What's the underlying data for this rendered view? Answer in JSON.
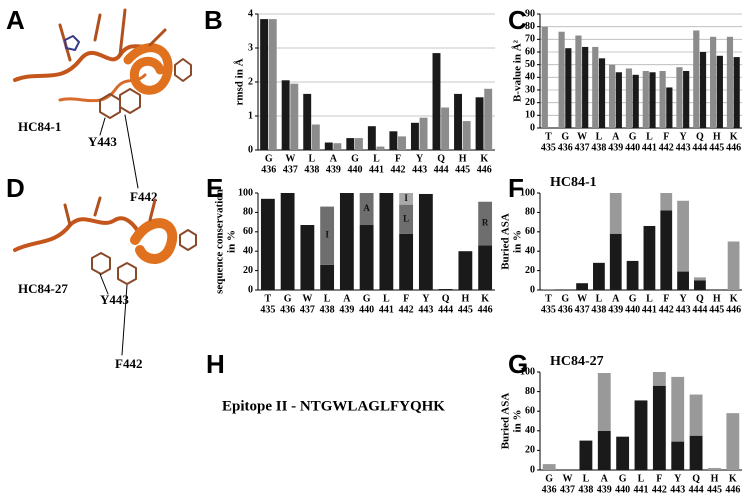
{
  "panel_labels": {
    "a": "A",
    "b": "B",
    "c": "C",
    "d": "D",
    "e": "E",
    "f": "F",
    "g": "G",
    "h": "H"
  },
  "structures": [
    {
      "name": "HC84-1",
      "residue_1": "Y443",
      "residue_2": "F442"
    },
    {
      "name": "HC84-27",
      "residue_1": "Y443",
      "residue_2": "F442"
    }
  ],
  "epitope": "Epitope II - NTGWLAGLFYQHK",
  "chart_data": [
    {
      "type": "bar",
      "y_label": [
        "rmsd in Å"
      ],
      "categories": [
        [
          "G",
          "436"
        ],
        [
          "W",
          "437"
        ],
        [
          "L",
          "438"
        ],
        [
          "A",
          "439"
        ],
        [
          "G",
          "440"
        ],
        [
          "L",
          "441"
        ],
        [
          "F",
          "442"
        ],
        [
          "Y",
          "443"
        ],
        [
          "Q",
          "444"
        ],
        [
          "H",
          "445"
        ],
        [
          "K",
          "446"
        ]
      ],
      "series": [
        {
          "color": "#1a1a1a",
          "values": [
            3.85,
            2.05,
            1.65,
            0.22,
            0.35,
            0.7,
            0.55,
            0.8,
            2.85,
            1.65,
            1.55
          ]
        },
        {
          "color": "#8c8c8c",
          "values": [
            3.85,
            1.95,
            0.75,
            0.2,
            0.35,
            0.1,
            0.4,
            0.95,
            1.25,
            0.85,
            1.8
          ]
        }
      ],
      "ylim": [
        0,
        4
      ],
      "yticks": [
        0,
        1,
        2,
        3,
        4
      ],
      "grid": true
    },
    {
      "type": "bar",
      "y_label": [
        "B-value in Å²"
      ],
      "categories": [
        [
          "T",
          "435"
        ],
        [
          "G",
          "436"
        ],
        [
          "W",
          "437"
        ],
        [
          "L",
          "438"
        ],
        [
          "A",
          "439"
        ],
        [
          "G",
          "440"
        ],
        [
          "L",
          "441"
        ],
        [
          "F",
          "442"
        ],
        [
          "Y",
          "443"
        ],
        [
          "Q",
          "444"
        ],
        [
          "H",
          "445"
        ],
        [
          "K",
          "446"
        ]
      ],
      "series": [
        {
          "color": "#8c8c8c",
          "values": [
            80,
            76,
            73,
            64,
            50,
            47,
            45,
            45,
            48,
            77,
            72,
            72
          ]
        },
        {
          "color": "#1a1a1a",
          "values": [
            null,
            63,
            64,
            55,
            44,
            42,
            44,
            32,
            45,
            60,
            57,
            56
          ]
        }
      ],
      "ylim": [
        0,
        90
      ],
      "yticks": [
        0,
        10,
        20,
        30,
        40,
        50,
        60,
        70,
        80,
        90
      ],
      "grid": true
    },
    {
      "type": "stacked_bar",
      "y_label": [
        "sequence conservation",
        "in %"
      ],
      "categories": [
        [
          "T",
          "435"
        ],
        [
          "G",
          "436"
        ],
        [
          "W",
          "437"
        ],
        [
          "L",
          "438"
        ],
        [
          "A",
          "439"
        ],
        [
          "G",
          "440"
        ],
        [
          "L",
          "441"
        ],
        [
          "F",
          "442"
        ],
        [
          "Y",
          "443"
        ],
        [
          "Q",
          "444"
        ],
        [
          "H",
          "445"
        ],
        [
          "K",
          "446"
        ]
      ],
      "series": [
        {
          "color": "#1a1a1a",
          "values": [
            94,
            100,
            67,
            26,
            100,
            67,
            100,
            58,
            99,
            1,
            40,
            46
          ]
        },
        {
          "color": "#6e6e6e",
          "values": [
            0,
            0,
            0,
            60,
            0,
            33,
            0,
            30,
            0,
            0,
            0,
            45
          ],
          "labels": [
            null,
            null,
            null,
            "I",
            null,
            "A",
            null,
            "L",
            null,
            null,
            null,
            "R"
          ]
        },
        {
          "color": "#a8a8a8",
          "values": [
            0,
            0,
            0,
            0,
            0,
            0,
            0,
            12,
            0,
            0,
            0,
            0
          ],
          "labels": [
            null,
            null,
            null,
            null,
            null,
            null,
            null,
            "I",
            null,
            null,
            null,
            null
          ]
        }
      ],
      "ylim": [
        0,
        100
      ],
      "yticks": [
        0,
        20,
        40,
        60,
        80,
        100
      ],
      "grid": false
    },
    {
      "type": "stacked_bar",
      "title": "HC84-1",
      "y_label": [
        "Buried ASA",
        "in %"
      ],
      "categories": [
        [
          "T",
          "435"
        ],
        [
          "G",
          "436"
        ],
        [
          "W",
          "437"
        ],
        [
          "L",
          "438"
        ],
        [
          "A",
          "439"
        ],
        [
          "G",
          "440"
        ],
        [
          "L",
          "441"
        ],
        [
          "F",
          "442"
        ],
        [
          "Y",
          "443"
        ],
        [
          "Q",
          "444"
        ],
        [
          "H",
          "445"
        ],
        [
          "K",
          "446"
        ]
      ],
      "series": [
        {
          "color": "#1a1a1a",
          "values": [
            0,
            0,
            7,
            28,
            58,
            30,
            66,
            82,
            19,
            10,
            0,
            0
          ]
        },
        {
          "color": "#999999",
          "values": [
            1,
            0,
            0,
            0,
            42,
            0,
            0,
            18,
            73,
            3,
            0,
            50
          ]
        }
      ],
      "ylim": [
        0,
        100
      ],
      "yticks": [
        0,
        20,
        40,
        60,
        80,
        100
      ],
      "grid": false
    },
    {
      "type": "stacked_bar",
      "title": "HC84-27",
      "y_label": [
        "Buried ASA",
        "in %"
      ],
      "categories": [
        [
          "G",
          "436"
        ],
        [
          "W",
          "437"
        ],
        [
          "L",
          "438"
        ],
        [
          "A",
          "439"
        ],
        [
          "G",
          "440"
        ],
        [
          "L",
          "441"
        ],
        [
          "F",
          "442"
        ],
        [
          "Y",
          "443"
        ],
        [
          "Q",
          "444"
        ],
        [
          "H",
          "445"
        ],
        [
          "K",
          "446"
        ]
      ],
      "series": [
        {
          "color": "#1a1a1a",
          "values": [
            0,
            0,
            30,
            40,
            34,
            71,
            86,
            29,
            35,
            0,
            0
          ]
        },
        {
          "color": "#999999",
          "values": [
            6,
            0,
            0,
            59,
            0,
            0,
            14,
            66,
            42,
            2,
            58
          ]
        }
      ],
      "ylim": [
        0,
        100
      ],
      "yticks": [
        0,
        20,
        40,
        60,
        80,
        100
      ],
      "grid": false
    }
  ]
}
